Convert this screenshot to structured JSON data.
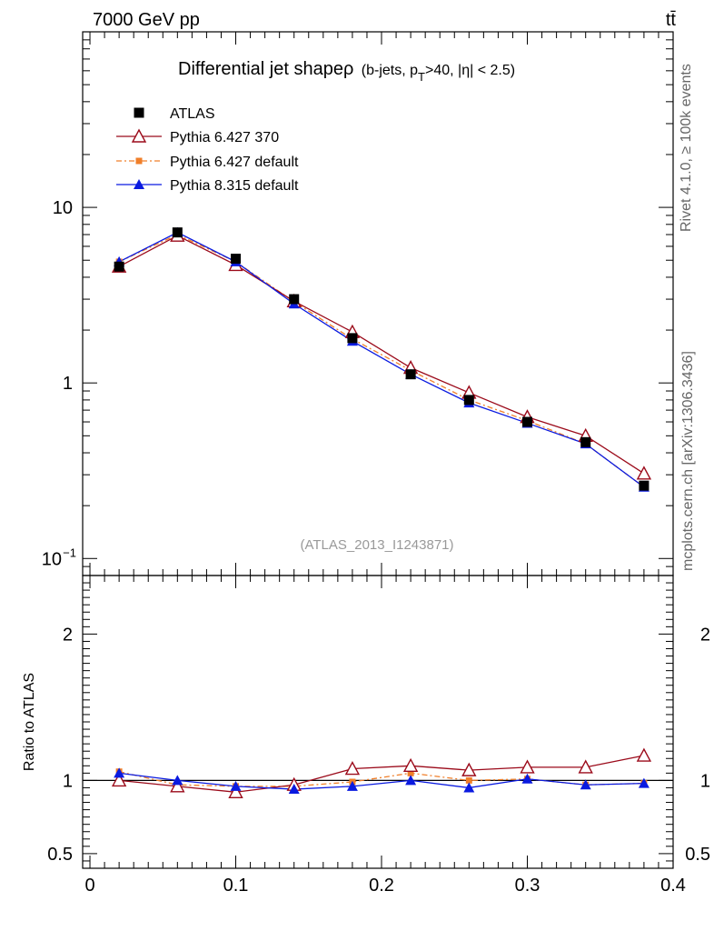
{
  "header": {
    "left_label": "7000 GeV pp",
    "right_label": "tt̄"
  },
  "side_labels": {
    "rivet": "Rivet 4.1.0, ≥ 100k events",
    "mcplots": "mcplots.cern.ch [arXiv:1306.3436]"
  },
  "chart_data": {
    "type": "line",
    "title": "Differential jet shapeρ",
    "title_suffix_pre": "(b-jets, p",
    "title_suffix_sub": "T",
    "title_suffix_post": ">40, |η| < 2.5)",
    "reference": "(ATLAS_2013_I1243871)",
    "x": [
      0.02,
      0.06,
      0.1,
      0.14,
      0.18,
      0.22,
      0.26,
      0.3,
      0.34,
      0.38
    ],
    "xlim": [
      -0.005,
      0.4
    ],
    "xlabel": "",
    "main_ylim": [
      0.08,
      100
    ],
    "main_ylog": true,
    "main_yticks": [
      {
        "v": 10,
        "label": "10"
      },
      {
        "v": 1,
        "label": "1"
      }
    ],
    "main_ytick_exp": {
      "base": "10",
      "exp": "−1"
    },
    "ratio_ylabel": "Ratio to ATLAS",
    "ratio_ylim": [
      0.4,
      2.4
    ],
    "ratio_yticks": [
      {
        "v": 2,
        "label": "2"
      },
      {
        "v": 1,
        "label": "1"
      },
      {
        "v": 0.5,
        "label": "0.5"
      }
    ],
    "xticks": [
      {
        "v": 0,
        "label": "0"
      },
      {
        "v": 0.1,
        "label": "0.1"
      },
      {
        "v": 0.2,
        "label": "0.2"
      },
      {
        "v": 0.3,
        "label": "0.3"
      },
      {
        "v": 0.4,
        "label": "0.4"
      }
    ],
    "series": [
      {
        "name": "ATLAS",
        "key": "atlas",
        "color": "#000000",
        "marker": "square",
        "values": [
          4.6,
          7.2,
          5.1,
          3.0,
          1.8,
          1.12,
          0.8,
          0.6,
          0.46,
          0.26
        ],
        "ratio": [
          1.0,
          1.0,
          1.0,
          1.0,
          1.0,
          1.0,
          1.0,
          1.0,
          1.0,
          1.0
        ]
      },
      {
        "name": "Pythia 6.427 370",
        "key": "p370",
        "color": "#9b0a1a",
        "marker": "triangle-open",
        "values": [
          4.6,
          6.9,
          4.7,
          2.92,
          1.95,
          1.22,
          0.88,
          0.64,
          0.5,
          0.305
        ],
        "ratio": [
          1.0,
          0.96,
          0.92,
          0.97,
          1.08,
          1.1,
          1.07,
          1.09,
          1.09,
          1.17
        ]
      },
      {
        "name": "Pythia 6.427 default",
        "key": "p6def",
        "color": "#f07f2a",
        "marker": "square-small",
        "values": [
          4.9,
          7.0,
          4.9,
          2.9,
          1.78,
          1.18,
          0.8,
          0.61,
          0.45,
          0.255
        ],
        "ratio": [
          1.06,
          0.97,
          0.96,
          0.96,
          0.99,
          1.05,
          1.0,
          1.01,
          0.97,
          0.98
        ]
      },
      {
        "name": "Pythia 8.315 default",
        "key": "p8def",
        "color": "#0a1ae0",
        "marker": "triangle",
        "values": [
          4.9,
          7.2,
          4.9,
          2.82,
          1.73,
          1.12,
          0.77,
          0.59,
          0.45,
          0.255
        ],
        "ratio": [
          1.05,
          1.0,
          0.96,
          0.94,
          0.96,
          1.0,
          0.95,
          1.01,
          0.97,
          0.98
        ]
      }
    ]
  }
}
